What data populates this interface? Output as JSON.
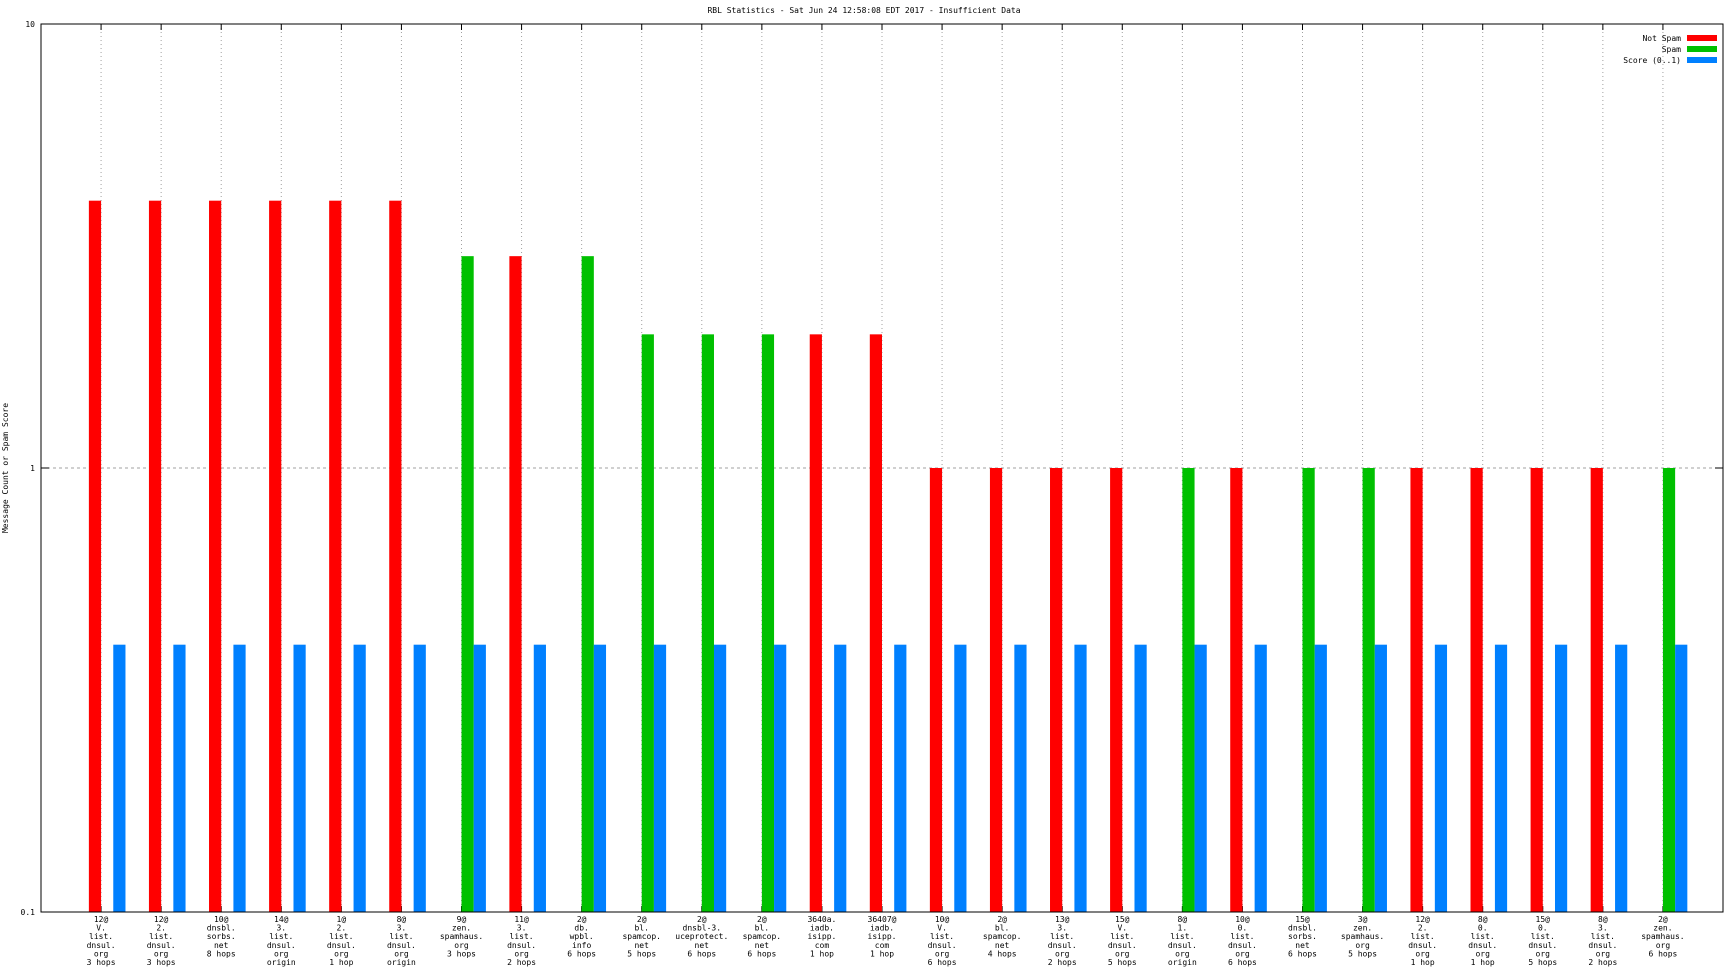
{
  "chart_data": {
    "type": "bar",
    "title": "RBL Statistics - Sat Jun 24 12:58:08 EDT 2017 - Insufficient Data",
    "y_label": "Message Count or Spam Score",
    "log_y": true,
    "grid": true,
    "legend": "top-right",
    "ylim": [
      0.1,
      10
    ],
    "yticks": [
      0.1,
      1,
      10
    ],
    "categories": [
      [
        "12@",
        "V.",
        "list.",
        "dnsul.",
        "org",
        "3 hops"
      ],
      [
        "12@",
        "2.",
        "list.",
        "dnsul.",
        "org",
        "3 hops"
      ],
      [
        "10@",
        "dnsbl.",
        "sorbs.",
        "net",
        "8 hops"
      ],
      [
        "14@",
        "3.",
        "list.",
        "dnsul.",
        "org",
        "origin"
      ],
      [
        "1@",
        "2.",
        "list.",
        "dnsul.",
        "org",
        "1 hop"
      ],
      [
        "8@",
        "3.",
        "list.",
        "dnsul.",
        "org",
        "origin"
      ],
      [
        "9@",
        "zen.",
        "spamhaus.",
        "org",
        "3 hops"
      ],
      [
        "11@",
        "3.",
        "list.",
        "dnsul.",
        "org",
        "2 hops"
      ],
      [
        "2@",
        "db.",
        "wpbl.",
        "info",
        "6 hops"
      ],
      [
        "2@",
        "bl.",
        "spamcop.",
        "net",
        "5 hops"
      ],
      [
        "2@",
        "dnsbl-3.",
        "uceprotect.",
        "net",
        "6 hops"
      ],
      [
        "2@",
        "bl.",
        "spamcop.",
        "net",
        "6 hops"
      ],
      [
        "3640a.",
        "iadb.",
        "isipp.",
        "com",
        "1 hop"
      ],
      [
        "36407@",
        "iadb.",
        "isipp.",
        "com",
        "1 hop"
      ],
      [
        "10@",
        "V.",
        "list.",
        "dnsul.",
        "org",
        "6 hops"
      ],
      [
        "2@",
        "bl.",
        "spamcop.",
        "net",
        "4 hops"
      ],
      [
        "13@",
        "3.",
        "list.",
        "dnsul.",
        "org",
        "2 hops"
      ],
      [
        "15@",
        "V.",
        "list.",
        "dnsul.",
        "org",
        "5 hops"
      ],
      [
        "8@",
        "1.",
        "list.",
        "dnsul.",
        "org",
        "origin"
      ],
      [
        "10@",
        "0.",
        "list.",
        "dnsul.",
        "org",
        "6 hops"
      ],
      [
        "15@",
        "dnsbl.",
        "sorbs.",
        "net",
        "6 hops"
      ],
      [
        "3@",
        "zen.",
        "spamhaus.",
        "org",
        "5 hops"
      ],
      [
        "12@",
        "2.",
        "list.",
        "dnsul.",
        "org",
        "1 hop"
      ],
      [
        "8@",
        "0.",
        "list.",
        "dnsul.",
        "org",
        "1 hop"
      ],
      [
        "15@",
        "0.",
        "list.",
        "dnsul.",
        "org",
        "5 hops"
      ],
      [
        "8@",
        "3.",
        "list.",
        "dnsul.",
        "org",
        "2 hops"
      ],
      [
        "2@",
        "zen.",
        "spamhaus.",
        "org",
        "6 hops"
      ]
    ],
    "series": [
      {
        "name": "Not Spam",
        "color": "#ff0000",
        "values": [
          4,
          4,
          4,
          4,
          4,
          4,
          null,
          3,
          null,
          null,
          null,
          null,
          2,
          2,
          1,
          1,
          1,
          1,
          null,
          1,
          null,
          null,
          1,
          1,
          1,
          1,
          null
        ]
      },
      {
        "name": "Spam",
        "color": "#00c000",
        "values": [
          null,
          null,
          null,
          null,
          null,
          null,
          3,
          null,
          3,
          2,
          2,
          2,
          null,
          null,
          null,
          null,
          null,
          null,
          1,
          null,
          1,
          1,
          null,
          null,
          null,
          null,
          1
        ]
      },
      {
        "name": "Score (0..1)",
        "color": "#0080ff",
        "values": [
          0.4,
          0.4,
          0.4,
          0.4,
          0.4,
          0.4,
          0.4,
          0.4,
          0.4,
          0.4,
          0.4,
          0.4,
          0.4,
          0.4,
          0.4,
          0.4,
          0.4,
          0.4,
          0.4,
          0.4,
          0.4,
          0.4,
          0.4,
          0.4,
          0.4,
          0.4,
          0.4
        ]
      }
    ]
  }
}
